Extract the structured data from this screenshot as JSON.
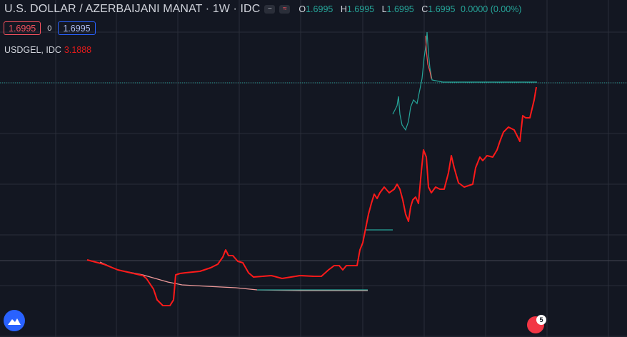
{
  "header": {
    "title": "U.S. DOLLAR / AZERBAIJANI MANAT",
    "interval": "1W",
    "source": "IDC",
    "dot": "·",
    "icons": [
      "minus-icon",
      "wave-icon"
    ],
    "ohlc": {
      "o_label": "O",
      "o_value": "1.6995",
      "h_label": "H",
      "h_value": "1.6995",
      "l_label": "L",
      "l_value": "1.6995",
      "c_label": "C",
      "c_value": "1.6995",
      "change": "0.0000 (0.00%)"
    }
  },
  "trade": {
    "sell_price": "1.6995",
    "spread": "0",
    "buy_price": "1.6995"
  },
  "compare": {
    "label": "USDGEL, IDC",
    "value": "3.1888"
  },
  "events": {
    "badge_count": "5"
  },
  "colors": {
    "background": "#131722",
    "grid": "#2a2e39",
    "up": "#26a69a",
    "down": "#ef5350",
    "compare_line": "#ff1a1a",
    "text": "#d1d4dc"
  },
  "chart_data": {
    "type": "line",
    "grid": true,
    "price_line_style": "dotted",
    "series": [
      {
        "name": "USDAZN",
        "style": "candles",
        "values": [
          1.6995
        ]
      },
      {
        "name": "USDGEL, IDC",
        "style": "line",
        "last_value": 3.1888
      }
    ]
  }
}
